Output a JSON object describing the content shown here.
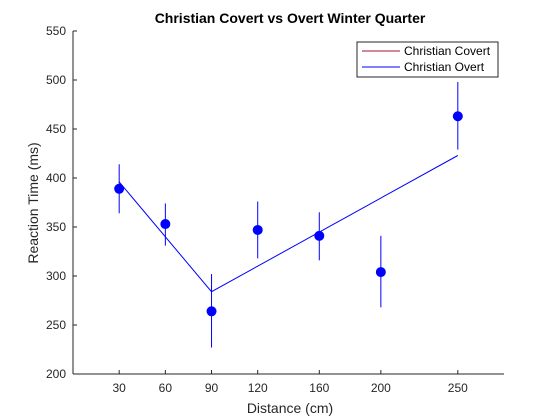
{
  "chart_data": {
    "type": "line",
    "title": "Christian Covert vs Overt Winter Quarter",
    "xlabel": "Distance (cm)",
    "ylabel": "Reaction Time (ms)",
    "x": [
      30,
      60,
      90,
      120,
      160,
      200,
      250
    ],
    "xticks": [
      "30",
      "60",
      "90",
      "120",
      "160",
      "200",
      "250"
    ],
    "xlim": [
      0,
      280
    ],
    "ylim": [
      200,
      550
    ],
    "yticks": [
      "200",
      "250",
      "300",
      "350",
      "400",
      "450",
      "500",
      "550"
    ],
    "grid": false,
    "legend_position": "top-right",
    "series": [
      {
        "name": "Christian Covert",
        "color": "#a2142f",
        "x": [],
        "y": []
      },
      {
        "name": "Christian Overt",
        "color": "#0000ff",
        "x": [
          30,
          90,
          250
        ],
        "y": [
          396,
          284,
          423
        ]
      }
    ],
    "points": {
      "color": "#0000ff",
      "x": [
        30,
        60,
        90,
        120,
        160,
        200,
        250
      ],
      "y": [
        389,
        353,
        264,
        347,
        341,
        304,
        463
      ],
      "err_low": [
        364,
        331,
        227,
        318,
        316,
        268,
        429
      ],
      "err_high": [
        414,
        374,
        302,
        376,
        365,
        341,
        498
      ]
    }
  }
}
